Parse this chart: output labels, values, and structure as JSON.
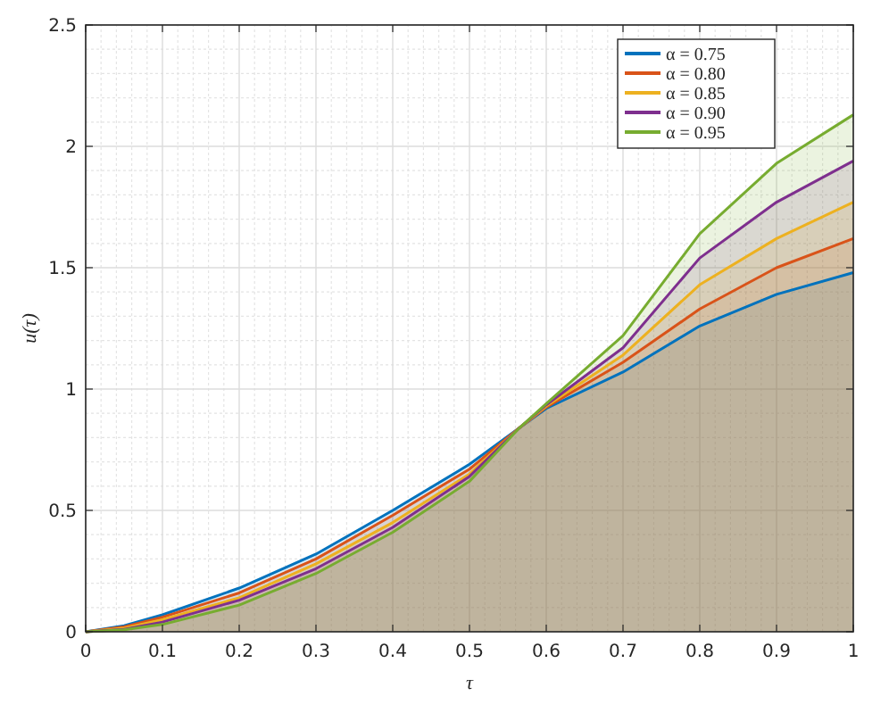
{
  "chart_data": {
    "type": "area",
    "xlabel": "τ",
    "ylabel": "u(τ)",
    "x": [
      0,
      0.05,
      0.1,
      0.2,
      0.3,
      0.4,
      0.5,
      0.565,
      0.6,
      0.7,
      0.8,
      0.9,
      1
    ],
    "series": [
      {
        "name": "α = 0.75",
        "color": "#0072bd",
        "values": [
          0,
          0.025,
          0.07,
          0.18,
          0.32,
          0.5,
          0.69,
          0.84,
          0.92,
          1.07,
          1.26,
          1.39,
          1.48
        ]
      },
      {
        "name": "α = 0.80",
        "color": "#d95319",
        "values": [
          0,
          0.02,
          0.06,
          0.16,
          0.3,
          0.48,
          0.67,
          0.84,
          0.925,
          1.11,
          1.33,
          1.5,
          1.62
        ]
      },
      {
        "name": "α = 0.85",
        "color": "#edb120",
        "values": [
          0,
          0.015,
          0.05,
          0.14,
          0.28,
          0.45,
          0.65,
          0.84,
          0.93,
          1.14,
          1.43,
          1.62,
          1.77
        ]
      },
      {
        "name": "α = 0.90",
        "color": "#7e2f8e",
        "values": [
          0,
          0.01,
          0.04,
          0.13,
          0.26,
          0.43,
          0.64,
          0.84,
          0.935,
          1.17,
          1.54,
          1.77,
          1.94
        ]
      },
      {
        "name": "α = 0.95",
        "color": "#77ac30",
        "values": [
          0,
          0.008,
          0.03,
          0.11,
          0.24,
          0.41,
          0.62,
          0.84,
          0.94,
          1.22,
          1.64,
          1.93,
          2.13
        ]
      }
    ],
    "xlim": [
      0,
      1
    ],
    "xticks": [
      0,
      0.1,
      0.2,
      0.3,
      0.4,
      0.5,
      0.6,
      0.7,
      0.8,
      0.9,
      1
    ],
    "ylim": [
      0,
      2.5
    ],
    "yticks": [
      0,
      0.5,
      1,
      1.5,
      2,
      2.5
    ],
    "grid": true,
    "legend": "top right"
  }
}
